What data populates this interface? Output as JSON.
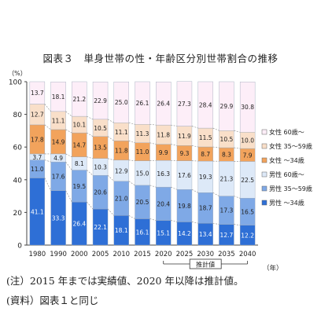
{
  "figure": {
    "title": "図表３　単身世帯の性・年齢区分別世帯割合の推移",
    "note": "(注）2015 年までは実績値、2020 年以降は推計値。",
    "source": "(資料）図表１と同じ"
  },
  "chart_data": {
    "type": "bar",
    "stacked": true,
    "categories": [
      "1980",
      "1990",
      "2000",
      "2005",
      "2010",
      "2015",
      "2020",
      "2025",
      "2030",
      "2035",
      "2040"
    ],
    "series": [
      {
        "name": "男性 〜34歳",
        "color": "#2e6fd6",
        "values": [
          41.1,
          33.3,
          26.4,
          22.1,
          18.1,
          16.1,
          15.1,
          14.2,
          13.4,
          12.7,
          12.2
        ]
      },
      {
        "name": "男性 35〜59歳",
        "color": "#7fa9e6",
        "values": [
          11.0,
          17.6,
          19.5,
          20.6,
          21.0,
          20.5,
          20.4,
          19.8,
          18.7,
          17.3,
          16.5
        ]
      },
      {
        "name": "男性 60歳〜",
        "color": "#dde9f8",
        "values": [
          3.7,
          4.9,
          8.1,
          10.3,
          12.9,
          15.0,
          16.3,
          17.6,
          19.3,
          21.3,
          22.5
        ]
      },
      {
        "name": "女性 〜34歳",
        "color": "#f2a35c",
        "values": [
          17.8,
          14.9,
          14.7,
          13.5,
          11.8,
          11.0,
          9.9,
          9.3,
          8.7,
          8.3,
          7.9
        ]
      },
      {
        "name": "女性 35〜59歳",
        "color": "#f9dfc9",
        "values": [
          12.7,
          11.1,
          10.1,
          10.5,
          11.1,
          11.3,
          11.8,
          11.9,
          11.5,
          10.5,
          10.0
        ]
      },
      {
        "name": "女性 60歳〜",
        "color": "#fdeef8",
        "values": [
          13.7,
          18.1,
          21.2,
          22.9,
          25.0,
          26.1,
          26.4,
          27.3,
          28.4,
          29.9,
          30.8
        ]
      }
    ],
    "ylim": [
      0,
      100
    ],
    "yticks": [
      0,
      20,
      40,
      60,
      80,
      100
    ],
    "ylabel": "（%）",
    "xlabel": "（年）",
    "projection_label": "推計値",
    "projection_from": "2020",
    "legend_order": [
      "女性 60歳〜",
      "女性 35〜59歳",
      "女性 〜34歳",
      "男性 60歳〜",
      "男性 35〜59歳",
      "男性 〜34歳"
    ],
    "legend_position": "right",
    "grid": false
  }
}
